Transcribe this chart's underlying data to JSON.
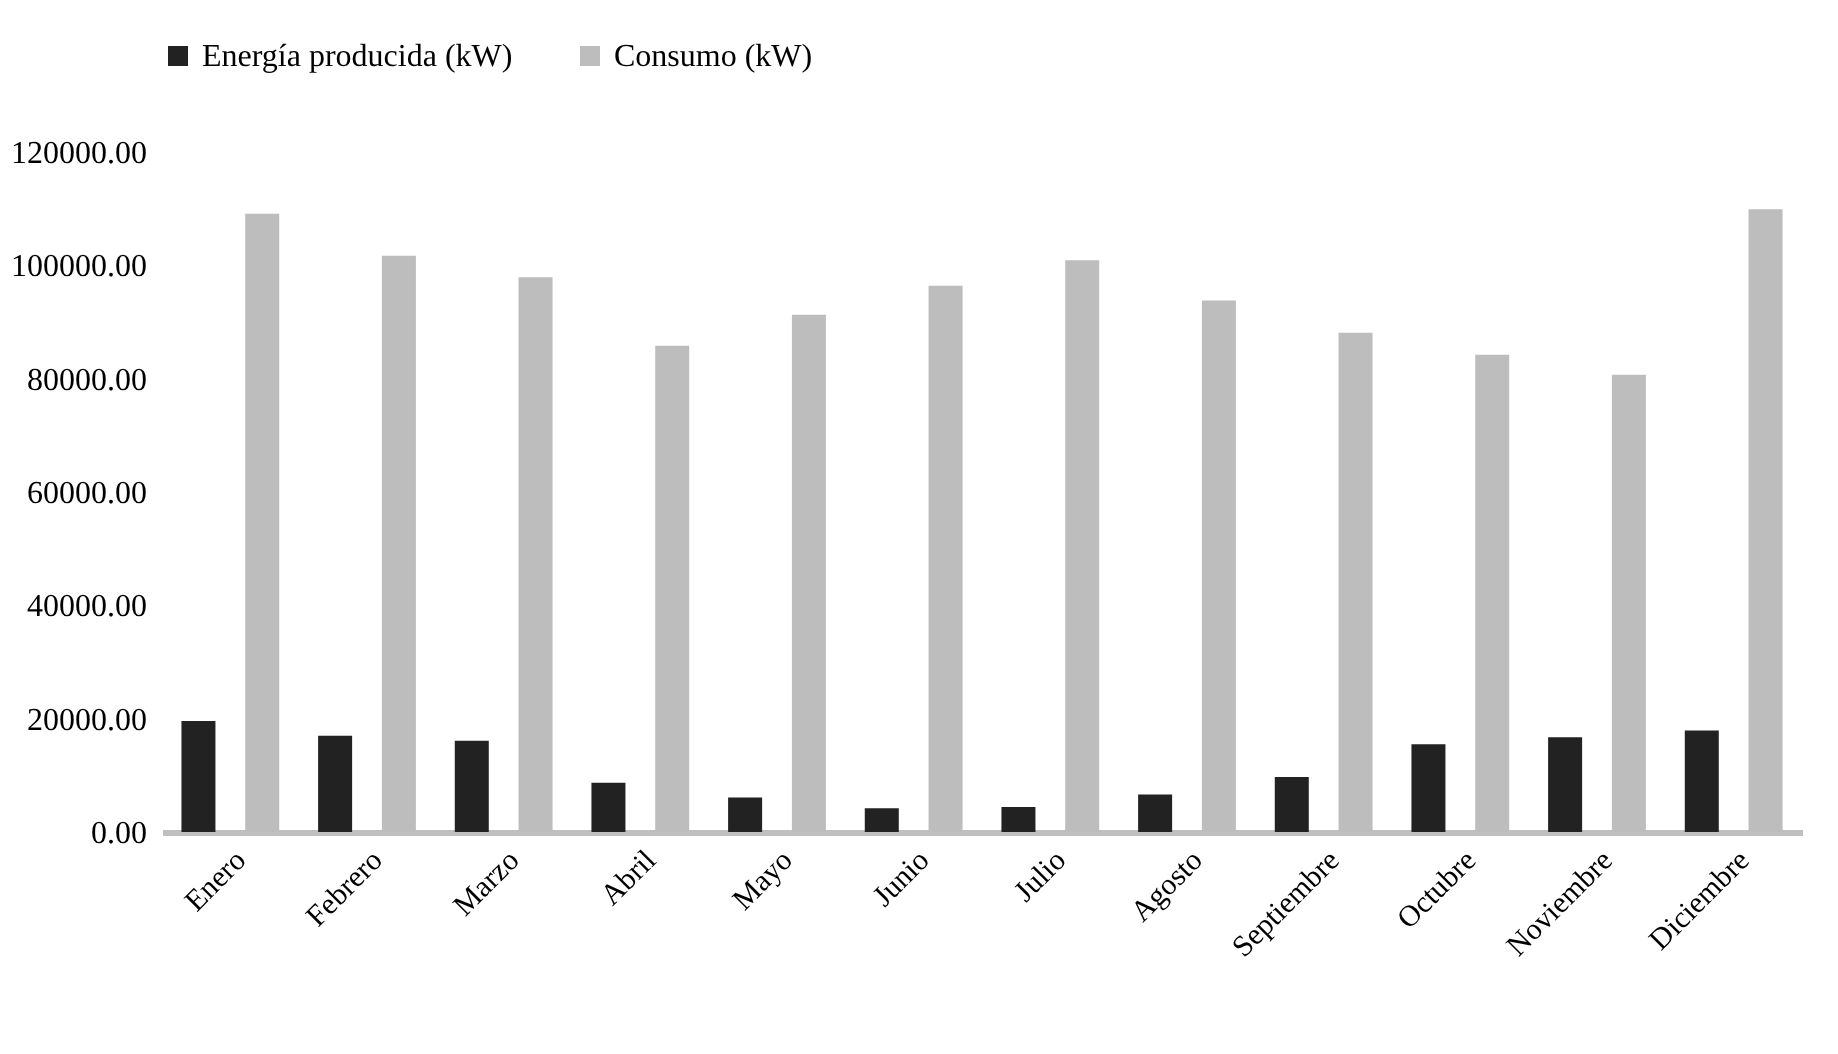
{
  "chart_data": {
    "type": "bar",
    "categories": [
      "Enero",
      "Febrero",
      "Marzo",
      "Abril",
      "Mayo",
      "Junio",
      "Julio",
      "Agosto",
      "Septiembre",
      "Octubre",
      "Noviembre",
      "Diciembre"
    ],
    "series": [
      {
        "name": "Energía producida (kW)",
        "color": "#222222",
        "values": [
          19600,
          17000,
          16100,
          8700,
          6100,
          4200,
          4400,
          6600,
          9700,
          15500,
          16700,
          17900
        ]
      },
      {
        "name": "Consumo (kW)",
        "color": "#bdbdbd",
        "values": [
          109100,
          101700,
          97900,
          85800,
          91300,
          96400,
          100900,
          93800,
          88100,
          84200,
          80700,
          109900
        ]
      }
    ],
    "ylim": [
      0,
      120000
    ],
    "yticks": [
      {
        "value": 0,
        "label": "0.00"
      },
      {
        "value": 20000,
        "label": "20000.00"
      },
      {
        "value": 40000,
        "label": "40000.00"
      },
      {
        "value": 60000,
        "label": "60000.00"
      },
      {
        "value": 80000,
        "label": "80000.00"
      },
      {
        "value": 100000,
        "label": "100000.00"
      },
      {
        "value": 120000,
        "label": "120000.00"
      }
    ],
    "grid": false,
    "legend": "top"
  }
}
